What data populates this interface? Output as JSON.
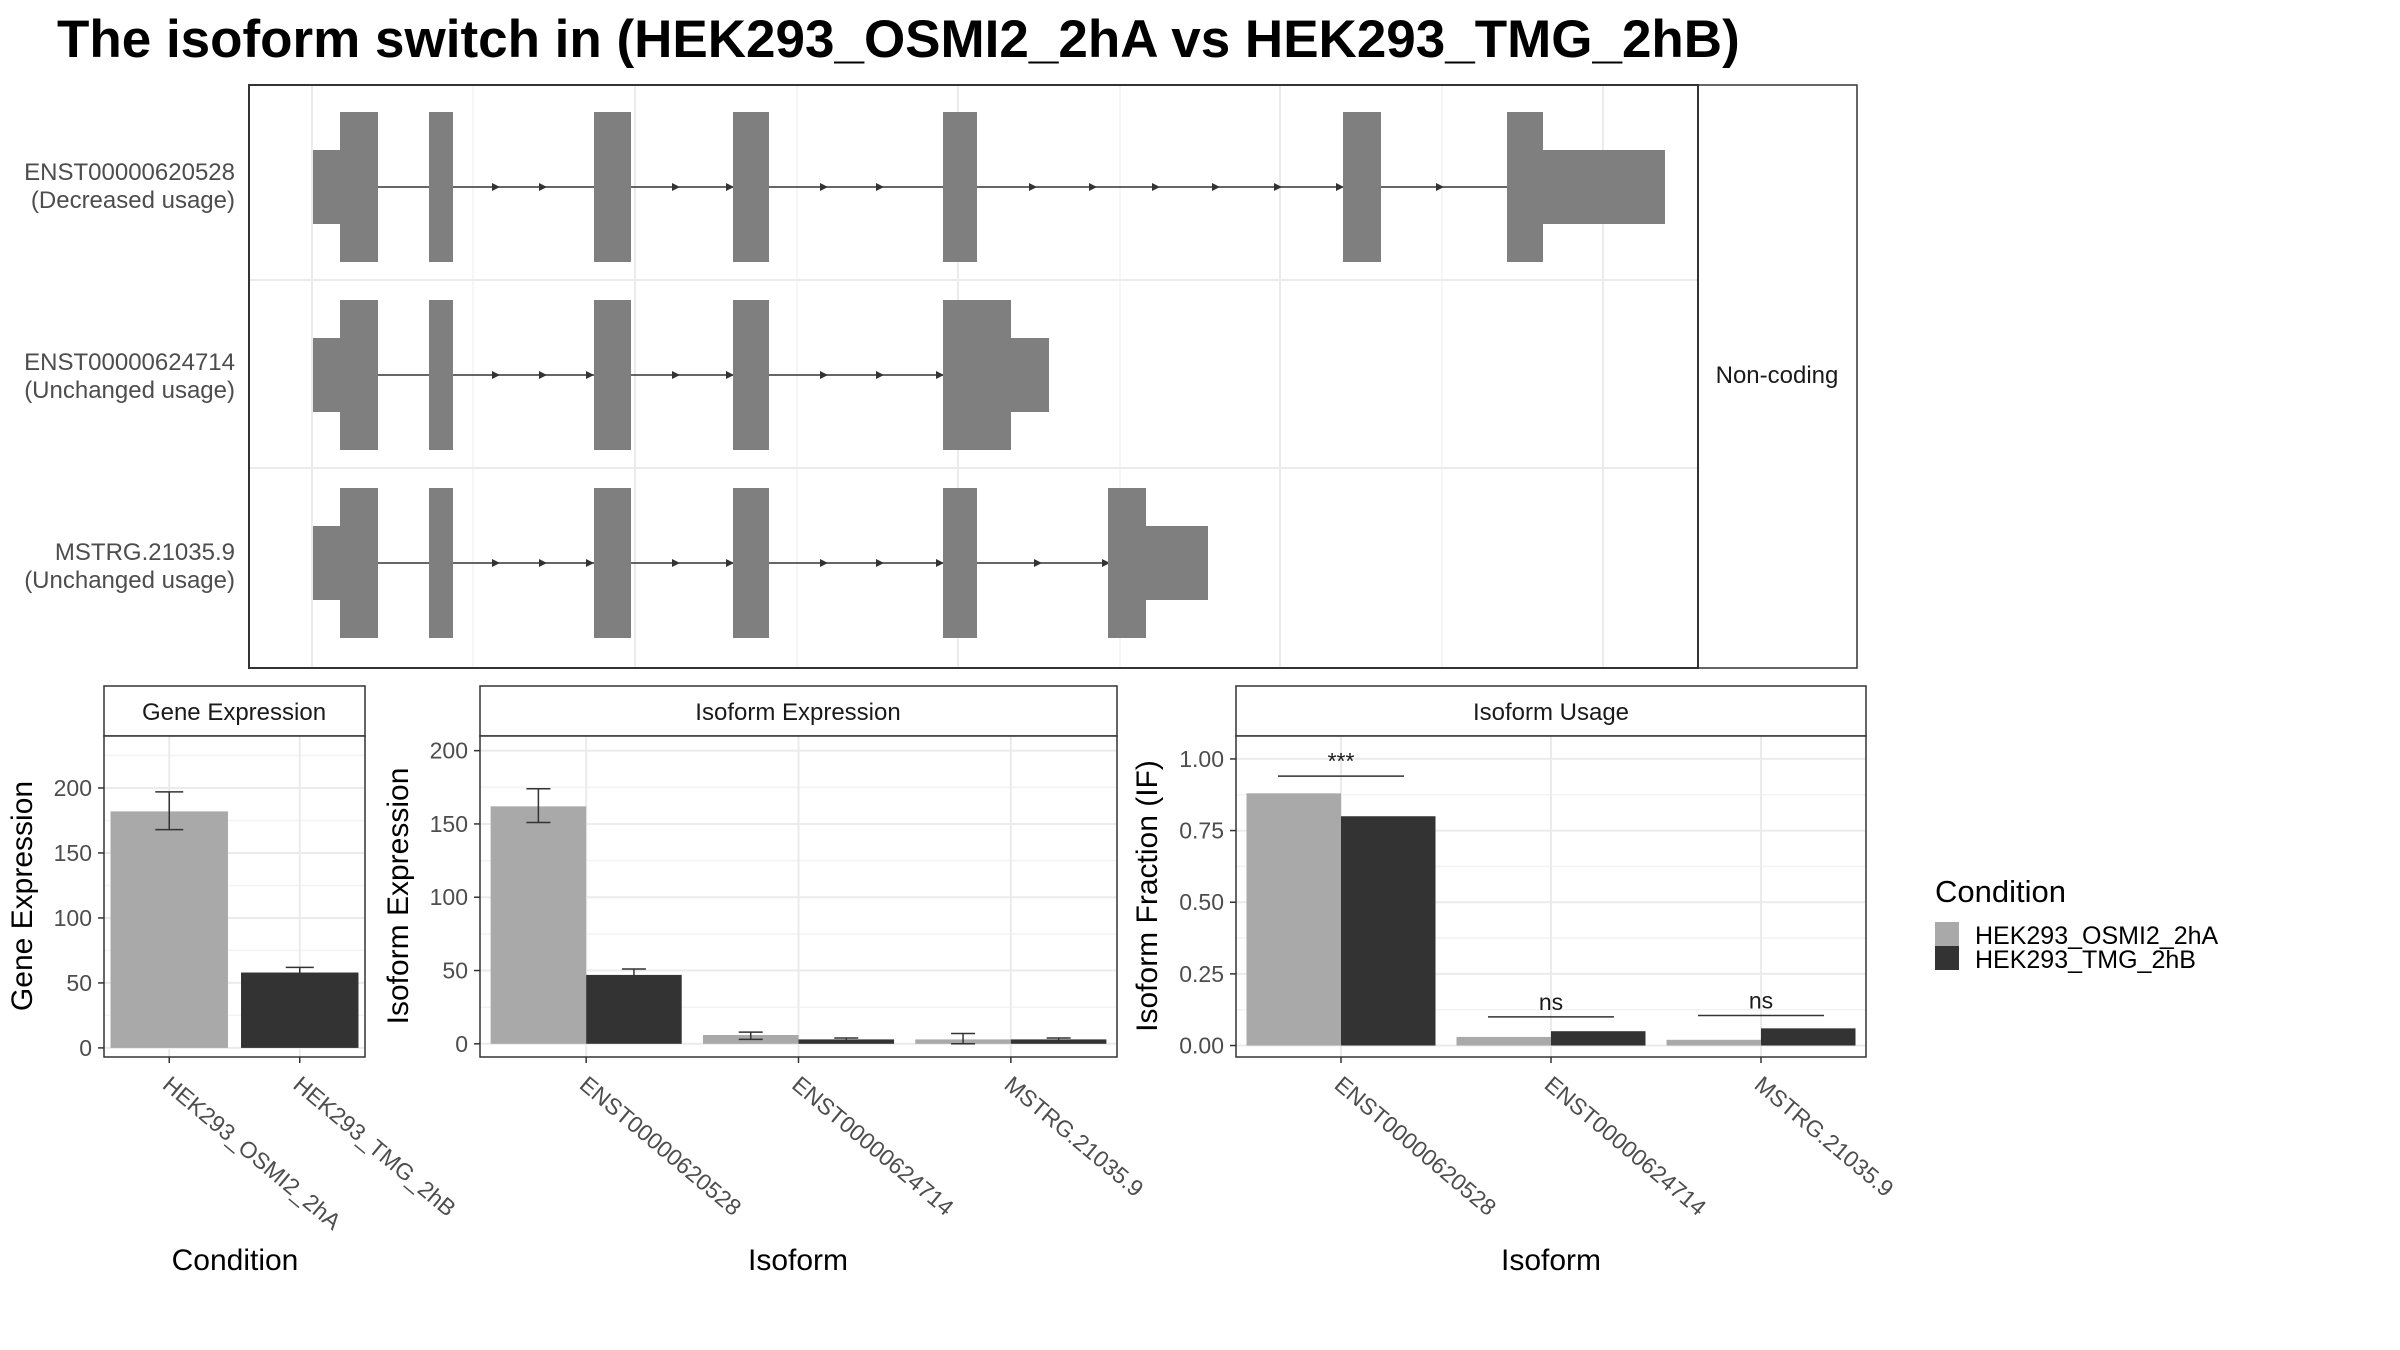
{
  "title": "The isoform switch in  (HEK293_OSMI2_2hA vs HEK293_TMG_2hB)",
  "colors": {
    "exon": "#7f7f7f",
    "condition_a": "#a9a9a9",
    "condition_b": "#333333",
    "grid_major": "#ebebeb",
    "grid_minor": "#f3f3f3",
    "panel_border": "#333333",
    "strip_border": "#333333",
    "strip_text": "#1a1a1a",
    "axis_text": "#4d4d4d"
  },
  "structure": {
    "strip_label": "Non-coding",
    "transcripts": [
      {
        "id": "ENST00000620528",
        "usage": "(Decreased usage)"
      },
      {
        "id": "ENST00000624714",
        "usage": "(Unchanged usage)"
      },
      {
        "id": "MSTRG.21035.9",
        "usage": "(Unchanged usage)"
      }
    ]
  },
  "legend": {
    "title": "Condition",
    "items": [
      "HEK293_OSMI2_2hA",
      "HEK293_TMG_2hB"
    ]
  },
  "chart_data": [
    {
      "type": "bar",
      "strip": "Gene Expression",
      "xlabel": "Condition",
      "ylabel": "Gene Expression",
      "categories": [
        "HEK293_OSMI2_2hA",
        "HEK293_TMG_2hB"
      ],
      "values": [
        182,
        58
      ],
      "error_low": [
        168,
        55
      ],
      "error_high": [
        197,
        62
      ],
      "ylim": [
        -7,
        240
      ],
      "yticks": [
        0,
        50,
        100,
        150,
        200
      ],
      "ytick_labels": [
        "0",
        "50",
        "100",
        "150",
        "200"
      ]
    },
    {
      "type": "bar",
      "strip": "Isoform Expression",
      "xlabel": "Isoform",
      "ylabel": "Isoform Expression",
      "categories": [
        "ENST00000620528",
        "ENST00000624714",
        "MSTRG.21035.9"
      ],
      "series": [
        {
          "name": "HEK293_OSMI2_2hA",
          "values": [
            162,
            6,
            3
          ],
          "error_low": [
            151,
            3,
            0
          ],
          "error_high": [
            174,
            8,
            7
          ]
        },
        {
          "name": "HEK293_TMG_2hB",
          "values": [
            47,
            3,
            3
          ],
          "error_low": [
            43,
            2,
            2
          ],
          "error_high": [
            51,
            4,
            4
          ]
        }
      ],
      "ylim": [
        -9,
        210
      ],
      "yticks": [
        0,
        50,
        100,
        150,
        200
      ],
      "ytick_labels": [
        "0",
        "50",
        "100",
        "150",
        "200"
      ]
    },
    {
      "type": "bar",
      "strip": "Isoform Usage",
      "xlabel": "Isoform",
      "ylabel": "Isoform Fraction (IF)",
      "categories": [
        "ENST00000620528",
        "ENST00000624714",
        "MSTRG.21035.9"
      ],
      "series": [
        {
          "name": "HEK293_OSMI2_2hA",
          "values": [
            0.88,
            0.03,
            0.02
          ]
        },
        {
          "name": "HEK293_TMG_2hB",
          "values": [
            0.8,
            0.05,
            0.06
          ]
        }
      ],
      "significance": [
        "***",
        "ns",
        "ns"
      ],
      "significance_y": [
        0.94,
        0.1,
        0.105
      ],
      "ylim": [
        -0.04,
        1.08
      ],
      "yticks": [
        0,
        0.25,
        0.5,
        0.75,
        1.0
      ],
      "ytick_labels": [
        "0.00",
        "0.25",
        "0.50",
        "0.75",
        "1.00"
      ]
    }
  ]
}
